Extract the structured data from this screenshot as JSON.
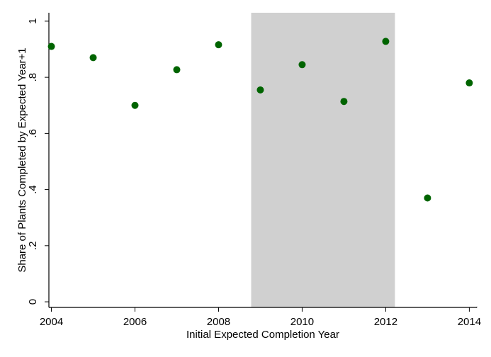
{
  "chart_data": {
    "type": "scatter",
    "xlabel": "Initial Expected Completion Year",
    "ylabel": "Share of Plants Completed by Expected Year+1",
    "xlim": [
      2003.94,
      2014.18
    ],
    "ylim": [
      -0.02,
      1.03
    ],
    "x_ticks": [
      2004,
      2006,
      2008,
      2010,
      2012,
      2014
    ],
    "x_tick_labels": [
      "2004",
      "2006",
      "2008",
      "2010",
      "2012",
      "2014"
    ],
    "y_ticks": [
      0,
      0.2,
      0.4,
      0.6,
      0.8,
      1
    ],
    "y_tick_labels": [
      "0",
      ".2",
      ".4",
      ".6",
      ".8",
      "1"
    ],
    "grid": false,
    "shaded_region": {
      "x": [
        2008.78,
        2012.22
      ],
      "color": "#d0d0d0"
    },
    "marker_color": "#006400",
    "points": [
      {
        "x": 2004,
        "y": 0.91
      },
      {
        "x": 2005,
        "y": 0.87
      },
      {
        "x": 2006,
        "y": 0.7
      },
      {
        "x": 2007,
        "y": 0.827
      },
      {
        "x": 2008,
        "y": 0.916
      },
      {
        "x": 2009,
        "y": 0.755
      },
      {
        "x": 2010,
        "y": 0.845
      },
      {
        "x": 2011,
        "y": 0.714
      },
      {
        "x": 2012,
        "y": 0.928
      },
      {
        "x": 2013,
        "y": 0.37
      },
      {
        "x": 2014,
        "y": 0.78
      }
    ]
  }
}
